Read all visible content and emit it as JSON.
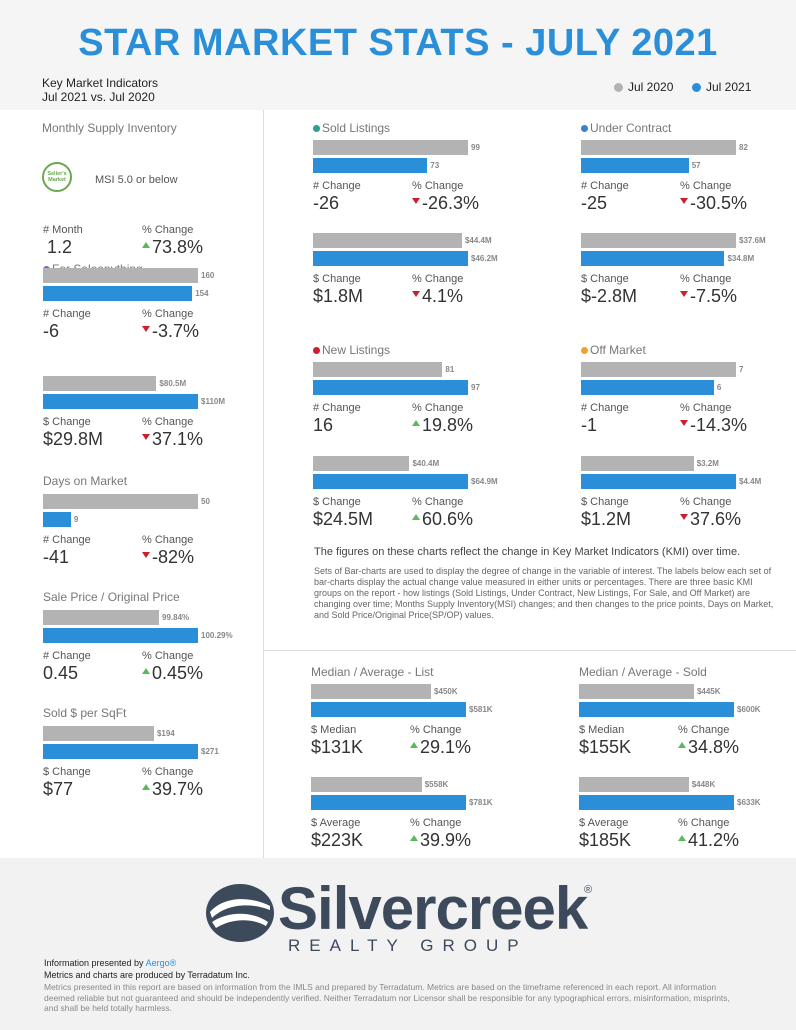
{
  "header": {
    "title": "STAR MARKET STATS - JULY 2021",
    "kmi_line1": "Key Market Indicators",
    "kmi_line2": "Jul 2021 vs. Jul 2020",
    "legend_2020": "Jul 2020",
    "legend_2021": "Jul 2021"
  },
  "colors": {
    "jul2020": "#b3b3b3",
    "jul2021": "#2a8fd8",
    "up": "#5cb85c",
    "down": "#cc1f2d",
    "title": "#2a8fd8"
  },
  "msi": {
    "title": "Monthly Supply Inventory",
    "badge_line1": "Seller's",
    "badge_line2": "Market",
    "badge_text": "MSI 5.0 or below",
    "label_a": "# Month",
    "label_b": "% Change",
    "value_a": "1.2",
    "value_b": "73.8%",
    "dir_b": "up"
  },
  "chart_data": [
    {
      "type": "bar",
      "id": "for_sale_count",
      "title": "For Saleanything",
      "dot_color": "#9b4fd6",
      "series": [
        {
          "name": "Jul 2020",
          "values": [
            160
          ]
        },
        {
          "name": "Jul 2021",
          "values": [
            154
          ]
        }
      ],
      "value_labels": [
        "160",
        "154"
      ],
      "label_a": "# Change",
      "label_b": "% Change",
      "value_a": "-6",
      "value_b": "-3.7%",
      "dir_b": "down"
    },
    {
      "type": "bar",
      "id": "for_sale_dollar",
      "series": [
        {
          "name": "Jul 2020",
          "values": [
            80.5
          ]
        },
        {
          "name": "Jul 2021",
          "values": [
            110
          ]
        }
      ],
      "value_labels": [
        "$80.5M",
        "$110M"
      ],
      "label_a": "$ Change",
      "label_b": "% Change",
      "value_a": "$29.8M",
      "value_b": "37.1%",
      "dir_b": "down"
    },
    {
      "type": "bar",
      "id": "dom",
      "title": "Days on Market",
      "series": [
        {
          "name": "Jul 2020",
          "values": [
            50
          ]
        },
        {
          "name": "Jul 2021",
          "values": [
            9
          ]
        }
      ],
      "value_labels": [
        "50",
        "9"
      ],
      "label_a": "# Change",
      "label_b": "% Change",
      "value_a": "-41",
      "value_b": "-82%",
      "dir_b": "down"
    },
    {
      "type": "bar",
      "id": "sp_op",
      "title": "Sale Price / Original Price",
      "series": [
        {
          "name": "Jul 2020",
          "values": [
            99.84
          ]
        },
        {
          "name": "Jul 2021",
          "values": [
            100.29
          ]
        }
      ],
      "value_labels": [
        "99.84%",
        "100.29%"
      ],
      "label_a": "# Change",
      "label_b": "% Change",
      "value_a": "0.45",
      "value_b": "0.45%",
      "dir_b": "up"
    },
    {
      "type": "bar",
      "id": "sqft",
      "title": "Sold $ per SqFt",
      "series": [
        {
          "name": "Jul 2020",
          "values": [
            194
          ]
        },
        {
          "name": "Jul 2021",
          "values": [
            271
          ]
        }
      ],
      "value_labels": [
        "$194",
        "$271"
      ],
      "label_a": "$ Change",
      "label_b": "% Change",
      "value_a": "$77",
      "value_b": "39.7%",
      "dir_b": "up"
    },
    {
      "type": "bar",
      "id": "sold_count",
      "title": "Sold Listings",
      "dot_color": "#2e9e8f",
      "series": [
        {
          "name": "Jul 2020",
          "values": [
            99
          ]
        },
        {
          "name": "Jul 2021",
          "values": [
            73
          ]
        }
      ],
      "value_labels": [
        "99",
        "73"
      ],
      "label_a": "# Change",
      "label_b": "% Change",
      "value_a": "-26",
      "value_b": "-26.3%",
      "dir_b": "down"
    },
    {
      "type": "bar",
      "id": "sold_dollar",
      "series": [
        {
          "name": "Jul 2020",
          "values": [
            44.4
          ]
        },
        {
          "name": "Jul 2021",
          "values": [
            46.2
          ]
        }
      ],
      "value_labels": [
        "$44.4M",
        "$46.2M"
      ],
      "label_a": "$ Change",
      "label_b": "% Change",
      "value_a": "$1.8M",
      "value_b": "4.1%",
      "dir_b": "down"
    },
    {
      "type": "bar",
      "id": "uc_count",
      "title": "Under Contract",
      "dot_color": "#3a7fd0",
      "series": [
        {
          "name": "Jul 2020",
          "values": [
            82
          ]
        },
        {
          "name": "Jul 2021",
          "values": [
            57
          ]
        }
      ],
      "value_labels": [
        "82",
        "57"
      ],
      "label_a": "# Change",
      "label_b": "% Change",
      "value_a": "-25",
      "value_b": "-30.5%",
      "dir_b": "down"
    },
    {
      "type": "bar",
      "id": "uc_dollar",
      "series": [
        {
          "name": "Jul 2020",
          "values": [
            37.6
          ]
        },
        {
          "name": "Jul 2021",
          "values": [
            34.8
          ]
        }
      ],
      "value_labels": [
        "$37.6M",
        "$34.8M"
      ],
      "label_a": "$ Change",
      "label_b": "% Change",
      "value_a": "$-2.8M",
      "value_b": "-7.5%",
      "dir_b": "down"
    },
    {
      "type": "bar",
      "id": "new_count",
      "title": "New Listings",
      "dot_color": "#cc1f2d",
      "series": [
        {
          "name": "Jul 2020",
          "values": [
            81
          ]
        },
        {
          "name": "Jul 2021",
          "values": [
            97
          ]
        }
      ],
      "value_labels": [
        "81",
        "97"
      ],
      "label_a": "# Change",
      "label_b": "% Change",
      "value_a": "16",
      "value_b": "19.8%",
      "dir_b": "up"
    },
    {
      "type": "bar",
      "id": "new_dollar",
      "series": [
        {
          "name": "Jul 2020",
          "values": [
            40.4
          ]
        },
        {
          "name": "Jul 2021",
          "values": [
            64.9
          ]
        }
      ],
      "value_labels": [
        "$40.4M",
        "$64.9M"
      ],
      "label_a": "$ Change",
      "label_b": "% Change",
      "value_a": "$24.5M",
      "value_b": "60.6%",
      "dir_b": "up"
    },
    {
      "type": "bar",
      "id": "off_count",
      "title": "Off Market",
      "dot_color": "#f0a030",
      "series": [
        {
          "name": "Jul 2020",
          "values": [
            7
          ]
        },
        {
          "name": "Jul 2021",
          "values": [
            6
          ]
        }
      ],
      "value_labels": [
        "7",
        "6"
      ],
      "label_a": "# Change",
      "label_b": "% Change",
      "value_a": "-1",
      "value_b": "-14.3%",
      "dir_b": "down"
    },
    {
      "type": "bar",
      "id": "off_dollar",
      "series": [
        {
          "name": "Jul 2020",
          "values": [
            3.2
          ]
        },
        {
          "name": "Jul 2021",
          "values": [
            4.4
          ]
        }
      ],
      "value_labels": [
        "$3.2M",
        "$4.4M"
      ],
      "label_a": "$ Change",
      "label_b": "% Change",
      "value_a": "$1.2M",
      "value_b": "37.6%",
      "dir_b": "down"
    },
    {
      "type": "bar",
      "id": "list_median",
      "title": "Median / Average - List",
      "series": [
        {
          "name": "Jul 2020",
          "values": [
            450
          ]
        },
        {
          "name": "Jul 2021",
          "values": [
            581
          ]
        }
      ],
      "value_labels": [
        "$450K",
        "$581K"
      ],
      "label_a": "$ Median",
      "label_b": "% Change",
      "value_a": "$131K",
      "value_b": "29.1%",
      "dir_b": "up"
    },
    {
      "type": "bar",
      "id": "list_avg",
      "series": [
        {
          "name": "Jul 2020",
          "values": [
            558
          ]
        },
        {
          "name": "Jul 2021",
          "values": [
            781
          ]
        }
      ],
      "value_labels": [
        "$558K",
        "$781K"
      ],
      "label_a": "$ Average",
      "label_b": "% Change",
      "value_a": "$223K",
      "value_b": "39.9%",
      "dir_b": "up"
    },
    {
      "type": "bar",
      "id": "sold_median",
      "title": "Median / Average - Sold",
      "series": [
        {
          "name": "Jul 2020",
          "values": [
            445
          ]
        },
        {
          "name": "Jul 2021",
          "values": [
            600
          ]
        }
      ],
      "value_labels": [
        "$445K",
        "$600K"
      ],
      "label_a": "$ Median",
      "label_b": "% Change",
      "value_a": "$155K",
      "value_b": "34.8%",
      "dir_b": "up"
    },
    {
      "type": "bar",
      "id": "sold_avg",
      "series": [
        {
          "name": "Jul 2020",
          "values": [
            448
          ]
        },
        {
          "name": "Jul 2021",
          "values": [
            633
          ]
        }
      ],
      "value_labels": [
        "$448K",
        "$633K"
      ],
      "label_a": "$ Average",
      "label_b": "% Change",
      "value_a": "$185K",
      "value_b": "41.2%",
      "dir_b": "up"
    }
  ],
  "note": {
    "head": "The figures on these charts reflect the change in Key Market Indicators (KMI) over time.",
    "body": "Sets of Bar-charts are used to display the degree of change in the variable of interest. The labels below each set of bar-charts display the actual change value measured in either units or percentages. There are three basic KMI groups on the report - how listings (Sold Listings, Under Contract, New Listings, For Sale, and Off Market) are changing over time; Months Supply Inventory(MSI) changes; and then changes to the price points, Days on Market, and Sold Price/Original Price(SP/OP) values."
  },
  "logo": {
    "main": "Silvercreek",
    "reg": "®",
    "sub": "REALTY GROUP"
  },
  "footer": {
    "line1_prefix": "Information presented by ",
    "line1_link": "Aergo®",
    "line2": "Metrics and charts are produced by Terradatum Inc.",
    "disclaimer": "Metrics presented in this report are based on information from the IMLS and prepared by Terradatum. Metrics are based on the timeframe referenced in each report. All information deemed reliable but not guaranteed and should be independently verified. Neither Terradatum nor Licensor shall be responsible for any typographical errors, misinformation, misprints, and shall be held totally harmless."
  }
}
